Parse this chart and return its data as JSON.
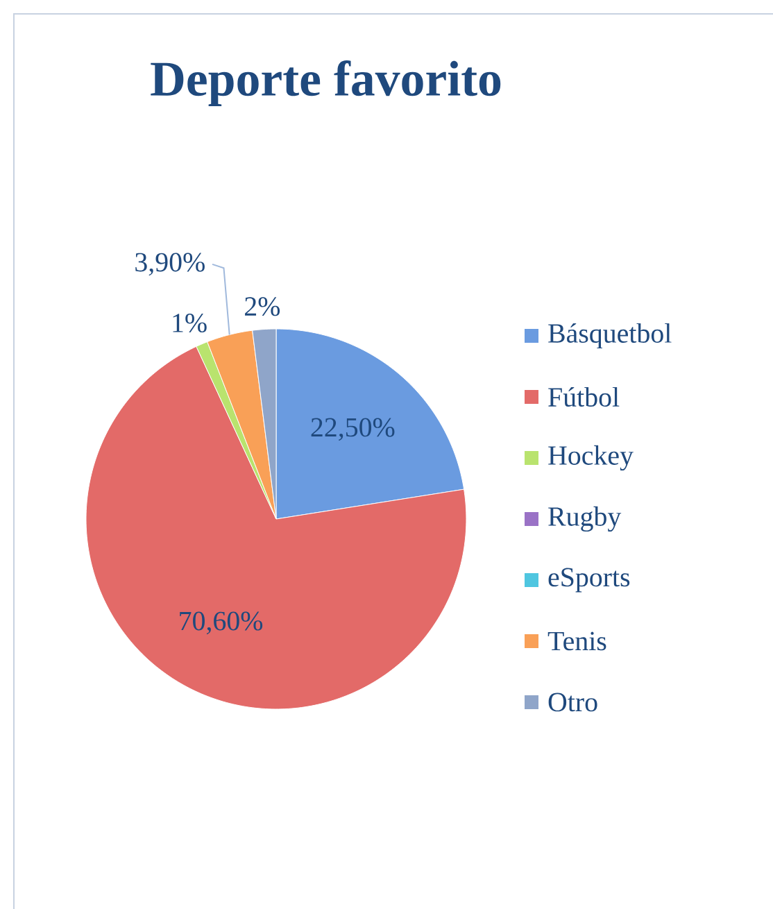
{
  "chart_data": {
    "type": "pie",
    "title": "Deporte favorito",
    "categories": [
      "Básquetbol",
      "Fútbol",
      "Hockey",
      "Rugby",
      "eSports",
      "Tenis",
      "Otro"
    ],
    "values": [
      22.5,
      70.6,
      1,
      0,
      0,
      3.9,
      2
    ],
    "value_labels": [
      "22,50%",
      "70,60%",
      "1%",
      null,
      null,
      "3,90%",
      "2%"
    ],
    "colors": [
      "#6a9be0",
      "#e36a68",
      "#b9e36e",
      "#9a72c6",
      "#4fc6e0",
      "#f9a057",
      "#8fa5c9"
    ],
    "legend": "right"
  }
}
